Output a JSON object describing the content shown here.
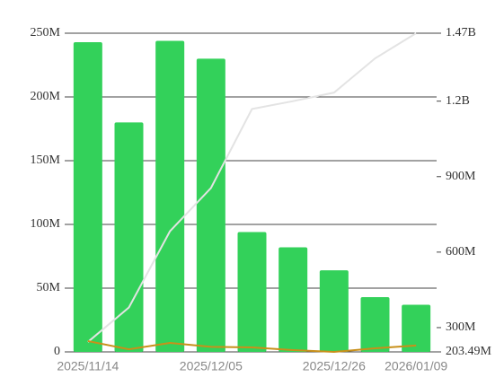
{
  "chart_data": {
    "type": "bar",
    "categories": [
      "2025/11/14",
      null,
      null,
      "2025/12/05",
      null,
      null,
      "2025/12/26",
      null,
      "2026/01/09"
    ],
    "series": [
      {
        "type": "bar",
        "color": "#33d15a",
        "values": [
          243000000,
          180000000,
          244000000,
          230000000,
          94000000,
          82000000,
          64000000,
          43000000,
          37000000
        ]
      },
      {
        "type": "line",
        "axis": "y2",
        "color": "#e3e3e3",
        "values": [
          243000000,
          380000000,
          683000000,
          855000000,
          1169000000,
          1200000000,
          1234000000,
          1370000000,
          1470000000
        ]
      },
      {
        "type": "line",
        "color": "#c8901a",
        "values": [
          8500000,
          2000000,
          7000000,
          4000000,
          3500000,
          1400000,
          0,
          2800000,
          5000000
        ]
      }
    ],
    "ylim": [
      0,
      250000000
    ],
    "yticks": [
      0,
      {
        "value": 50000000,
        "label": "50M"
      },
      {
        "value": 100000000,
        "label": "100M"
      },
      {
        "value": 150000000,
        "label": "150M"
      },
      {
        "value": 200000000,
        "label": "200M"
      },
      {
        "value": 250000000,
        "label": "250M"
      }
    ],
    "y2lim": [
      203490000,
      1470000000
    ],
    "y2ticks": [
      {
        "value": 203490000,
        "label": "203.49M"
      },
      {
        "value": 300000000,
        "label": "300M"
      },
      {
        "value": 600000000,
        "label": "600M"
      },
      {
        "value": 900000000,
        "label": "900M"
      },
      {
        "value": 1200000000,
        "label": "1.2B"
      },
      {
        "value": 1470000000,
        "label": "1.47B"
      }
    ],
    "grid": true
  }
}
